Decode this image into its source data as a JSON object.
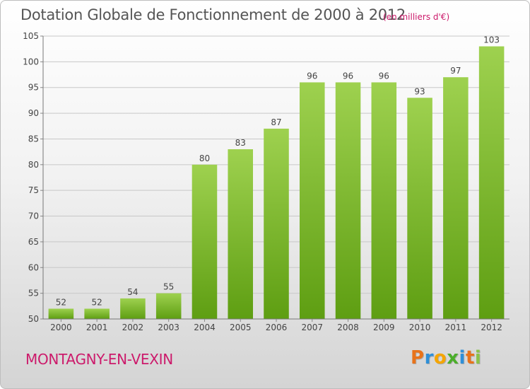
{
  "header": {
    "title": "Dotation Globale de Fonctionnement de 2000 à 2012",
    "unit": "(en milliers d'€)"
  },
  "footer": {
    "commune": "MONTAGNY-EN-VEXIN",
    "logo": {
      "text": "Proxiti",
      "letter_colors": [
        "#e8731a",
        "#2e8fd8",
        "#f5a500",
        "#4cae2b",
        "#2e8fd8",
        "#e8731a",
        "#8bc34a"
      ]
    }
  },
  "chart_data": {
    "type": "bar",
    "title": "Dotation Globale de Fonctionnement de 2000 à 2012",
    "xlabel": "",
    "ylabel": "",
    "categories": [
      "2000",
      "2001",
      "2002",
      "2003",
      "2004",
      "2005",
      "2006",
      "2007",
      "2008",
      "2009",
      "2010",
      "2011",
      "2012"
    ],
    "values": [
      52,
      52,
      54,
      55,
      80,
      83,
      87,
      96,
      96,
      96,
      93,
      97,
      103
    ],
    "ylim": [
      50,
      105
    ],
    "yticks": [
      50,
      55,
      60,
      65,
      70,
      75,
      80,
      85,
      90,
      95,
      100,
      105
    ],
    "grid": true,
    "bar_color_top": "#9ed14f",
    "bar_color_bottom": "#5e9e12"
  }
}
